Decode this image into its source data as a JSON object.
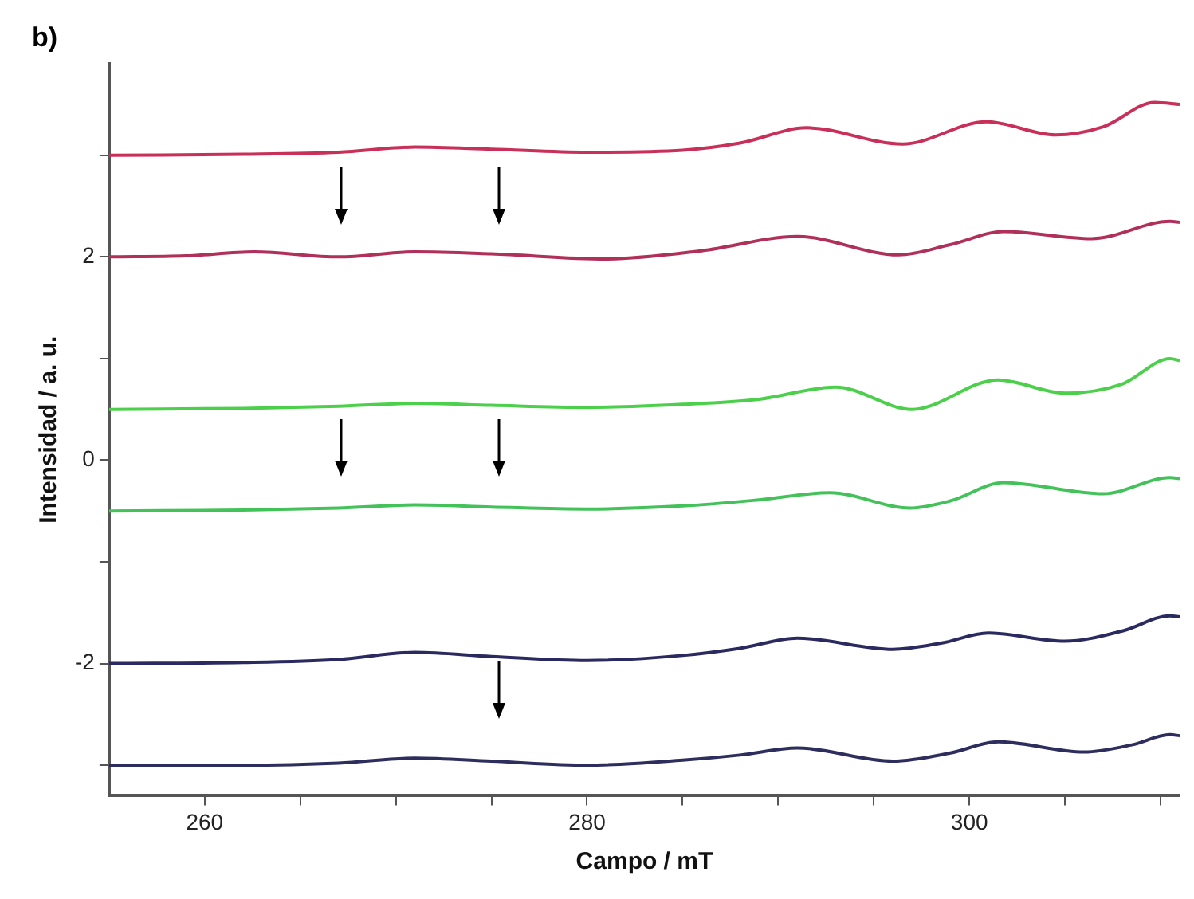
{
  "chart_data": {
    "type": "line",
    "annotations": [
      "b)"
    ],
    "xlabel": "Campo / mT",
    "ylabel": "Intensidad / a. u.",
    "xlim": [
      255,
      311
    ],
    "ylim": [
      -3.3,
      3.9
    ],
    "xticks": [
      260,
      {
        "value": 265,
        "label": null
      },
      {
        "value": 270,
        "label": null
      },
      {
        "value": 275,
        "label": null
      },
      280,
      {
        "value": 285,
        "label": null
      },
      {
        "value": 290,
        "label": null
      },
      {
        "value": 295,
        "label": null
      },
      300,
      {
        "value": 305,
        "label": null
      },
      {
        "value": 310,
        "label": null
      }
    ],
    "yticks": [
      {
        "value": -3,
        "label": null
      },
      -2,
      {
        "value": -1,
        "label": null
      },
      0,
      {
        "value": 1,
        "label": null
      },
      2,
      {
        "value": 3,
        "label": null
      }
    ],
    "grid": false,
    "legend": false,
    "marker": "none",
    "line_style": "solid",
    "series": [
      {
        "color": "#c8305a",
        "x": [
          255,
          262,
          267,
          271,
          275,
          280,
          285,
          288,
          291.5,
          296.5,
          300.9,
          304.5,
          307,
          309.7,
          311
        ],
        "values": [
          3,
          3.01,
          3.03,
          3.08,
          3.06,
          3.03,
          3.05,
          3.12,
          3.27,
          3.11,
          3.33,
          3.2,
          3.28,
          3.52,
          3.5
        ]
      },
      {
        "color": "#b0305a",
        "x": [
          255,
          259,
          262.6,
          267,
          271,
          275,
          281,
          286,
          291,
          296.3,
          299,
          301.8,
          306.4,
          310.5,
          311
        ],
        "values": [
          2,
          2.01,
          2.05,
          2,
          2.05,
          2.03,
          1.98,
          2.06,
          2.2,
          2.02,
          2.12,
          2.25,
          2.18,
          2.35,
          2.34
        ]
      },
      {
        "color": "#4cd04c",
        "x": [
          255,
          262,
          267,
          271,
          275,
          280,
          285,
          289,
          293,
          297,
          301.5,
          305,
          308,
          310.5,
          311
        ],
        "values": [
          0.5,
          0.51,
          0.53,
          0.56,
          0.54,
          0.52,
          0.55,
          0.6,
          0.72,
          0.5,
          0.79,
          0.66,
          0.75,
          1,
          0.98
        ]
      },
      {
        "color": "#44c25a",
        "x": [
          255,
          262,
          267,
          271,
          275,
          280,
          285,
          289,
          292.7,
          296.9,
          299,
          301.8,
          307,
          310.5,
          311
        ],
        "values": [
          -0.5,
          -0.49,
          -0.47,
          -0.44,
          -0.46,
          -0.48,
          -0.45,
          -0.39,
          -0.32,
          -0.47,
          -0.4,
          -0.22,
          -0.33,
          -0.17,
          -0.18
        ]
      },
      {
        "color": "#2a2a60",
        "x": [
          255,
          262,
          267,
          271,
          275,
          280,
          285,
          288,
          291,
          296,
          298.5,
          301,
          305,
          308,
          310.5,
          311
        ],
        "values": [
          -2,
          -1.99,
          -1.96,
          -1.89,
          -1.93,
          -1.97,
          -1.92,
          -1.85,
          -1.75,
          -1.86,
          -1.8,
          -1.7,
          -1.78,
          -1.68,
          -1.53,
          -1.54
        ]
      },
      {
        "color": "#2e2e5e",
        "x": [
          255,
          262,
          267,
          271,
          275,
          280,
          285,
          288,
          291,
          296,
          299,
          301.5,
          306,
          308.5,
          310.5,
          311
        ],
        "values": [
          -3,
          -3,
          -2.98,
          -2.93,
          -2.96,
          -3,
          -2.95,
          -2.9,
          -2.83,
          -2.96,
          -2.88,
          -2.77,
          -2.87,
          -2.8,
          -2.7,
          -2.71
        ]
      }
    ]
  }
}
